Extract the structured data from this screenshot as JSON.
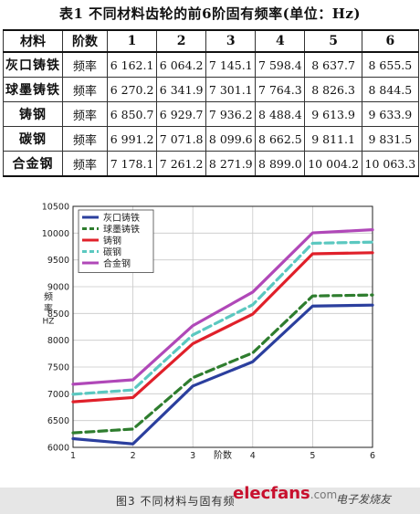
{
  "table": {
    "caption": "表1   不同材料齿轮的前6阶固有频率(单位：Hz)",
    "headers": [
      "材料",
      "阶数",
      "1",
      "2",
      "3",
      "4",
      "5",
      "6"
    ],
    "rows": [
      {
        "material": "灰口铸铁",
        "unit": "频率",
        "values": [
          "6 162.1",
          "6 064.2",
          "7 145.1",
          "7 598.4",
          "8 637.7",
          "8 655.5"
        ]
      },
      {
        "material": "球墨铸铁",
        "unit": "频率",
        "values": [
          "6 270.2",
          "6 341.9",
          "7 301.1",
          "7 764.3",
          "8 826.3",
          "8 844.5"
        ]
      },
      {
        "material": "铸钢",
        "unit": "频率",
        "values": [
          "6 850.7",
          "6 929.7",
          "7 936.2",
          "8 488.4",
          "9 613.9",
          "9 633.9"
        ]
      },
      {
        "material": "碳钢",
        "unit": "频率",
        "values": [
          "6 991.2",
          "7 071.8",
          "8 099.6",
          "8 662.5",
          "9 811.1",
          "9 831.5"
        ]
      },
      {
        "material": "合金钢",
        "unit": "频率",
        "values": [
          "7 178.1",
          "7 261.2",
          "8 271.9",
          "8 899.0",
          "10 004.2",
          "10 063.3"
        ]
      }
    ]
  },
  "chart_data": {
    "type": "line",
    "title": "",
    "xlabel": "阶数",
    "ylabel": "频率 HZ",
    "x": [
      1,
      2,
      3,
      4,
      5,
      6
    ],
    "xlim": [
      1,
      6
    ],
    "ylim": [
      6000,
      10500
    ],
    "yticks": [
      6000,
      6500,
      7000,
      7500,
      8000,
      8500,
      9000,
      9500,
      10000,
      10500
    ],
    "grid": true,
    "legend_position": "top-left",
    "series": [
      {
        "name": "灰口铸铁",
        "color": "#2b3f9e",
        "dash": "solid",
        "values": [
          6162.1,
          6064.2,
          7145.1,
          7598.4,
          8637.7,
          8655.5
        ]
      },
      {
        "name": "球墨铸铁",
        "color": "#2e7d2e",
        "dash": "dashed",
        "values": [
          6270.2,
          6341.9,
          7301.1,
          7764.3,
          8826.3,
          8844.5
        ]
      },
      {
        "name": "铸钢",
        "color": "#e0202a",
        "dash": "solid",
        "values": [
          6850.7,
          6929.7,
          7936.2,
          8488.4,
          9613.9,
          9633.9
        ]
      },
      {
        "name": "碳钢",
        "color": "#5bc8c0",
        "dash": "dashed",
        "values": [
          6991.2,
          7071.8,
          8099.6,
          8662.5,
          9811.1,
          9831.5
        ]
      },
      {
        "name": "合金钢",
        "color": "#b048b8",
        "dash": "solid",
        "values": [
          7178.1,
          7261.2,
          8271.9,
          8899.0,
          10004.2,
          10063.3
        ]
      }
    ]
  },
  "figure": {
    "caption": "图3   不同材料与固有频",
    "watermark": "elecfans",
    "watermark_suffix": ".com",
    "watermark2": "电子发烧友"
  }
}
